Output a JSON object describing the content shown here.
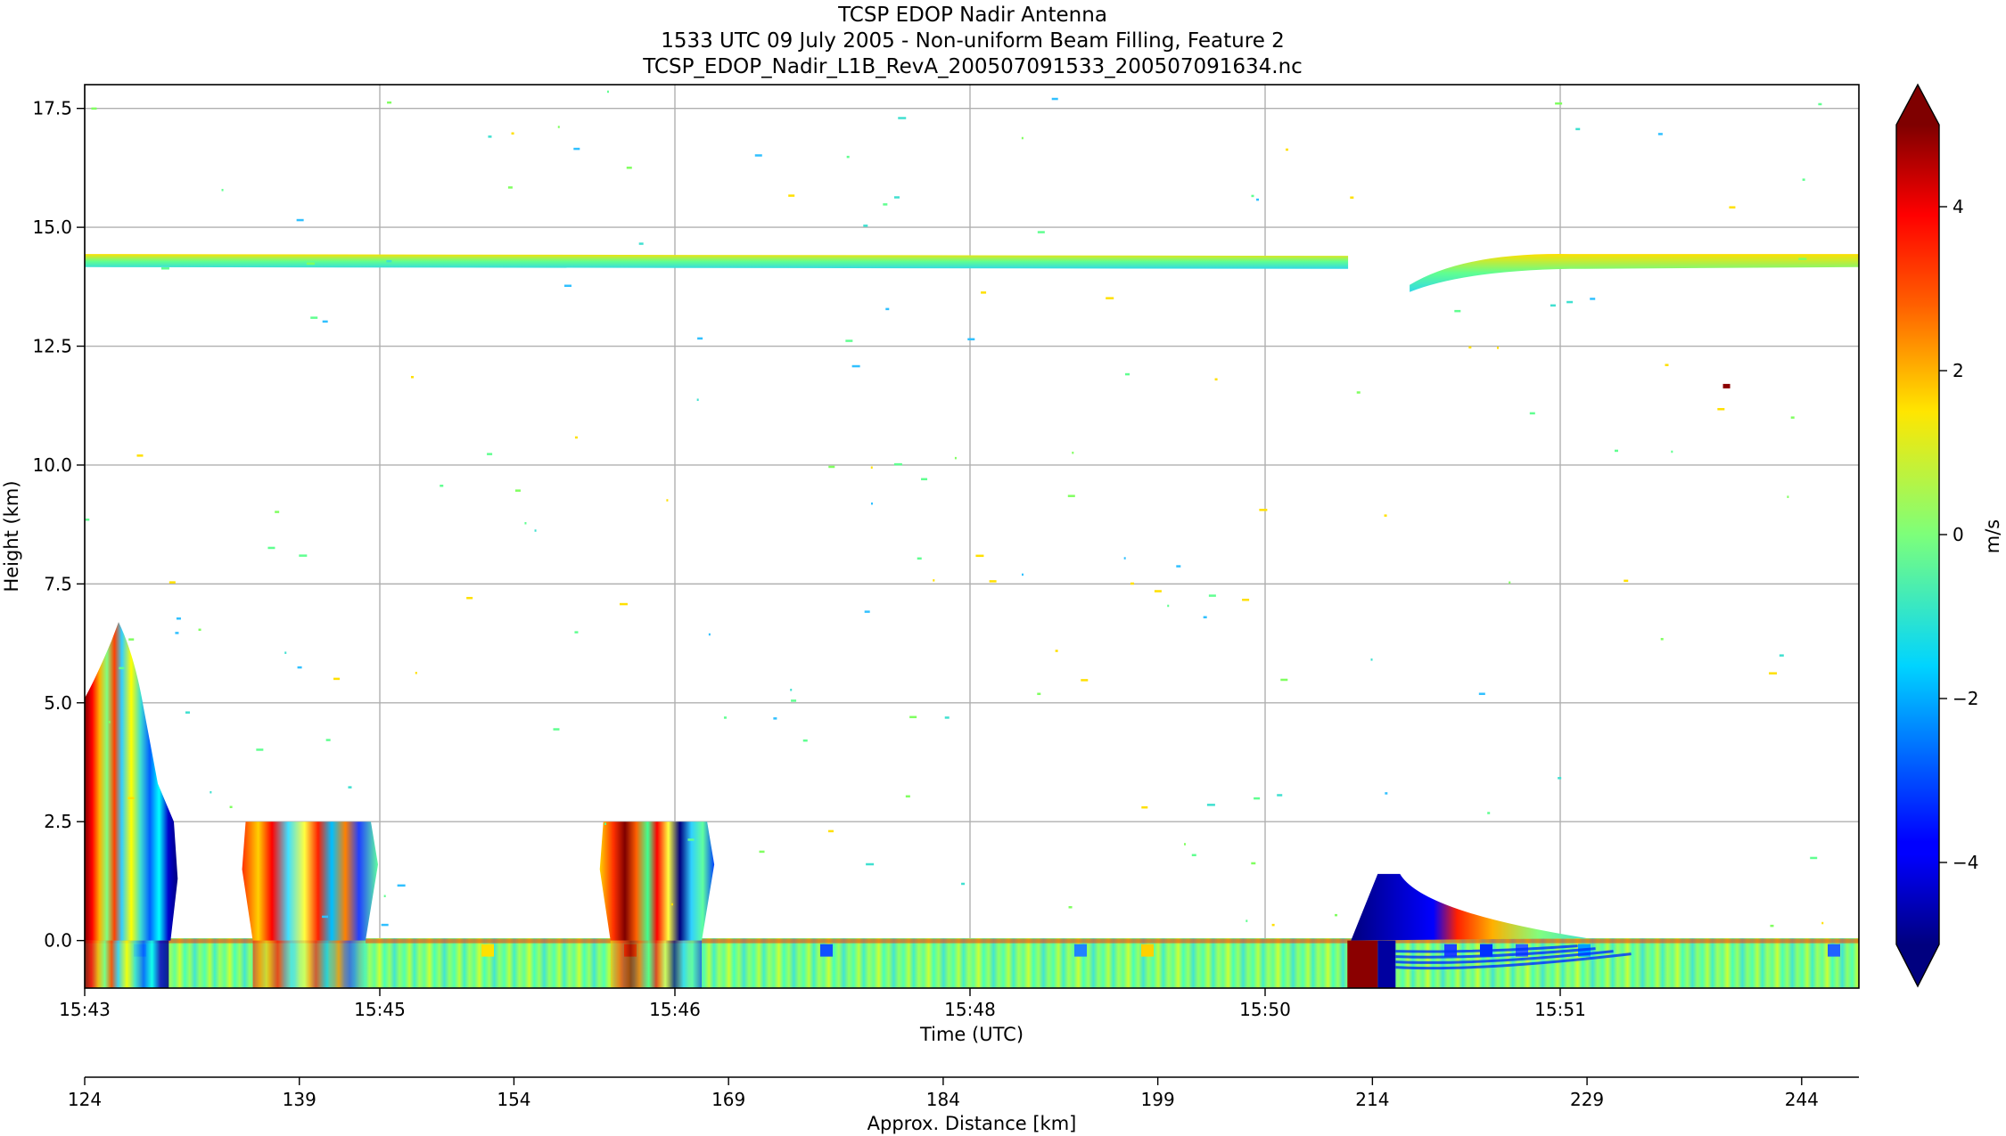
{
  "chart_data": {
    "type": "heatmap",
    "title_lines": [
      "TCSP EDOP Nadir Antenna",
      "1533 UTC 09 July 2005 - Non-uniform Beam Filling, Feature 2",
      "TCSP_EDOP_Nadir_L1B_RevA_200507091533_200507091634.nc"
    ],
    "xlabel": "Time (UTC)",
    "ylabel": "Height (km)",
    "x2label": "Approx. Distance [km]",
    "colorbar_label": "m/s",
    "x_ticks": [
      "15:43",
      "15:45",
      "15:46",
      "15:48",
      "15:50",
      "15:51"
    ],
    "x2_ticks": [
      "124",
      "139",
      "154",
      "169",
      "184",
      "199",
      "214",
      "229",
      "244"
    ],
    "x2_range": [
      124,
      248
    ],
    "y_ticks": [
      "0.0",
      "2.5",
      "5.0",
      "7.5",
      "10.0",
      "12.5",
      "15.0",
      "17.5"
    ],
    "y_range": [
      -1.0,
      18.0
    ],
    "colorbar_ticks": [
      "4",
      "2",
      "0",
      "−2",
      "−4"
    ],
    "colorbar_range": [
      -5,
      5
    ],
    "colorbar_extend": "both",
    "colormap": "jet",
    "grid": true,
    "features": [
      {
        "name": "tropopause echo band",
        "x_km": [
          124,
          247
        ],
        "height_km": [
          14.2,
          14.4
        ]
      },
      {
        "name": "deep convective cell",
        "x_km": [
          124,
          130.5
        ],
        "height_km": [
          0,
          6.7
        ]
      },
      {
        "name": "shallow cell",
        "x_km": [
          135,
          144.5
        ],
        "height_km": [
          0,
          2.5
        ]
      },
      {
        "name": "shallow cell",
        "x_km": [
          160,
          168
        ],
        "height_km": [
          0,
          2.5
        ]
      },
      {
        "name": "surface echo artifact",
        "x_km": [
          212.5,
          219
        ],
        "height_km": [
          -1,
          1.4
        ]
      },
      {
        "name": "surface return",
        "x_km": [
          124,
          248
        ],
        "height_km": [
          -1,
          0.05
        ]
      }
    ]
  }
}
